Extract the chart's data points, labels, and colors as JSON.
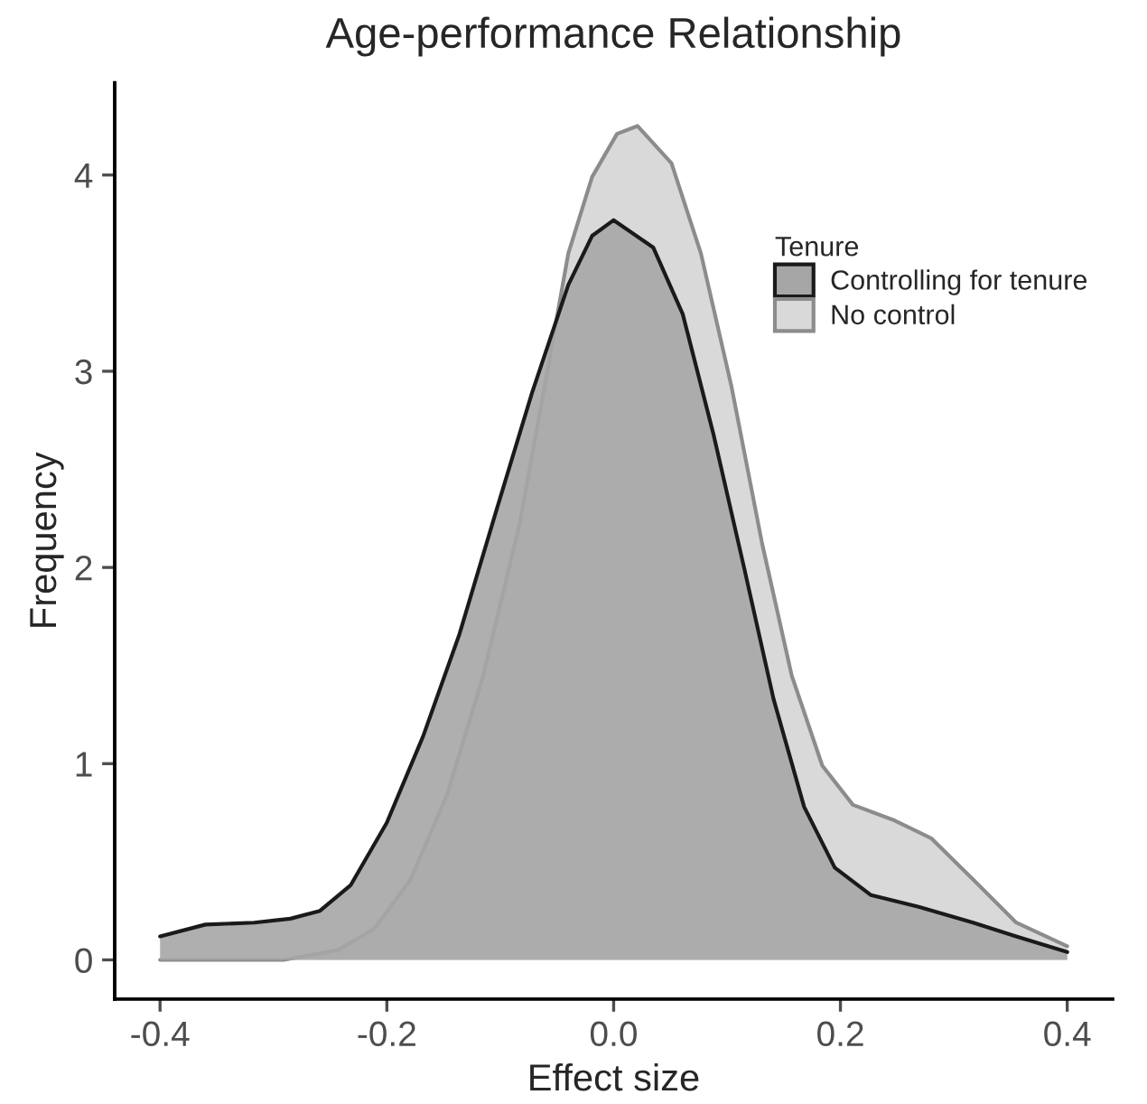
{
  "chart_data": {
    "type": "area",
    "title": "Age-performance Relationship",
    "xlabel": "Effect size",
    "ylabel": "Frequency",
    "legend_title": "Tenure",
    "legend": "top right",
    "grid": false,
    "xlim": [
      -0.44,
      0.44
    ],
    "ylim": [
      -0.2,
      4.47
    ],
    "xticks": [
      {
        "value": -0.4,
        "label": "-0.4"
      },
      {
        "value": -0.2,
        "label": "-0.2"
      },
      {
        "value": 0.0,
        "label": "0.0"
      },
      {
        "value": 0.2,
        "label": "0.2"
      },
      {
        "value": 0.4,
        "label": "0.4"
      }
    ],
    "yticks": [
      0,
      1,
      2,
      3,
      4
    ],
    "series": [
      {
        "name": "Controlling for tenure",
        "color": "#a6a6a6",
        "x": [
          -0.4,
          -0.36,
          -0.317,
          -0.285,
          -0.259,
          -0.232,
          -0.2,
          -0.168,
          -0.136,
          -0.104,
          -0.072,
          -0.04,
          -0.019,
          0.0,
          0.035,
          0.061,
          0.088,
          0.115,
          0.141,
          0.168,
          0.195,
          0.227,
          0.269,
          0.317,
          0.355,
          0.4
        ],
        "values": [
          0.12,
          0.18,
          0.19,
          0.21,
          0.25,
          0.38,
          0.7,
          1.14,
          1.66,
          2.28,
          2.89,
          3.44,
          3.69,
          3.77,
          3.63,
          3.29,
          2.68,
          2.0,
          1.33,
          0.78,
          0.47,
          0.33,
          0.27,
          0.19,
          0.12,
          0.04
        ]
      },
      {
        "name": "No control",
        "color": "#d9d9d9",
        "x": [
          -0.4,
          -0.291,
          -0.243,
          -0.211,
          -0.179,
          -0.147,
          -0.115,
          -0.083,
          -0.061,
          -0.04,
          -0.019,
          0.003,
          0.021,
          0.051,
          0.077,
          0.104,
          0.131,
          0.157,
          0.184,
          0.211,
          0.248,
          0.28,
          0.317,
          0.355,
          0.4
        ],
        "values": [
          0.0,
          0.0,
          0.05,
          0.16,
          0.41,
          0.84,
          1.45,
          2.22,
          2.92,
          3.6,
          3.99,
          4.21,
          4.25,
          4.06,
          3.6,
          2.92,
          2.12,
          1.45,
          0.99,
          0.79,
          0.71,
          0.62,
          0.41,
          0.19,
          0.07
        ]
      }
    ]
  }
}
